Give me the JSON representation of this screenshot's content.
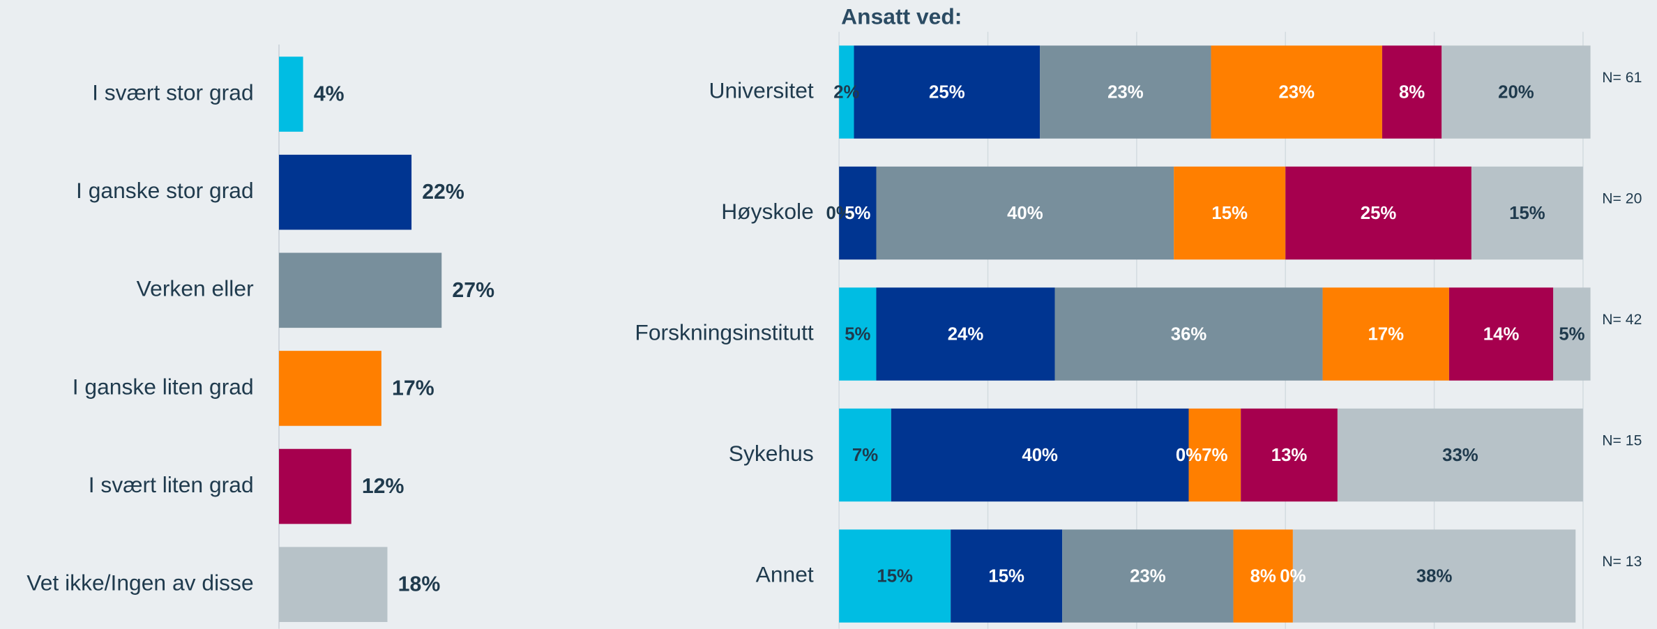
{
  "chart_data": [
    {
      "type": "hbar",
      "categories": [
        "I svært stor grad",
        "I ganske stor grad",
        "Verken eller",
        "I ganske liten grad",
        "I svært liten grad",
        "Vet ikke/Ingen av disse"
      ],
      "values": [
        4,
        22,
        27,
        17,
        12,
        18
      ],
      "value_labels": [
        "4%",
        "22%",
        "27%",
        "17%",
        "12%",
        "18%"
      ],
      "colors": [
        "#00bde3",
        "#003591",
        "#788f9c",
        "#ff7f00",
        "#a6004e",
        "#b7c2c8"
      ],
      "xlim": [
        0,
        40
      ]
    },
    {
      "type": "stacked_hbar",
      "title": "Ansatt ved:",
      "categories": [
        "Universitet",
        "Høyskole",
        "Forskningsinstitutt",
        "Sykehus",
        "Annet"
      ],
      "series": [
        {
          "color": "#00bde3",
          "values": [
            2,
            0,
            5,
            7,
            15
          ],
          "value_labels": [
            "2%",
            "0%",
            "5%",
            "7%",
            "15%"
          ]
        },
        {
          "color": "#003591",
          "values": [
            25,
            5,
            24,
            40,
            15
          ],
          "value_labels": [
            "25%",
            "5%",
            "24%",
            "40%",
            "15%"
          ]
        },
        {
          "color": "#788f9c",
          "values": [
            23,
            40,
            36,
            0,
            23
          ],
          "value_labels": [
            "23%",
            "40%",
            "36%",
            "0%",
            "23%"
          ]
        },
        {
          "color": "#ff7f00",
          "values": [
            23,
            15,
            17,
            7,
            8
          ],
          "value_labels": [
            "23%",
            "15%",
            "17%",
            "7%",
            "8%"
          ]
        },
        {
          "color": "#a6004e",
          "values": [
            8,
            25,
            14,
            13,
            0
          ],
          "value_labels": [
            "8%",
            "25%",
            "14%",
            "13%",
            "0%"
          ]
        },
        {
          "color": "#b7c2c8",
          "values": [
            20,
            15,
            5,
            33,
            38
          ],
          "value_labels": [
            "20%",
            "15%",
            "5%",
            "33%",
            "38%"
          ]
        }
      ],
      "annotations": [
        "N= 61",
        "N= 20",
        "N= 42",
        "N= 15",
        "N= 13"
      ],
      "xlim": [
        0,
        100
      ],
      "xticks": [
        0,
        20,
        40,
        60,
        80,
        100
      ],
      "grid": true
    }
  ]
}
